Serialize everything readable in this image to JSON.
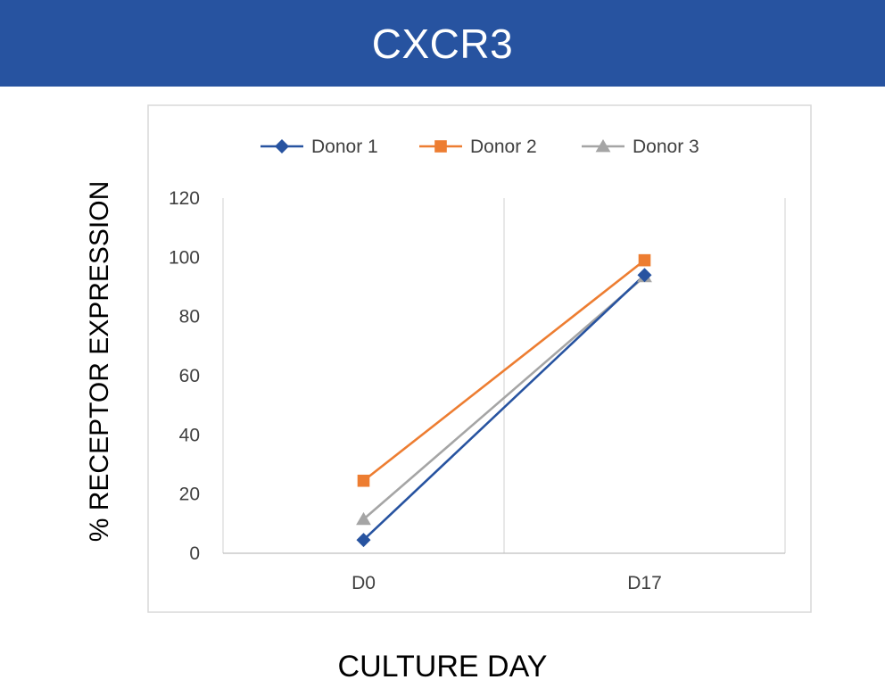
{
  "page": {
    "banner_title": "CXCR3"
  },
  "chart_data": {
    "type": "line",
    "title": "",
    "xlabel": "CULTURE DAY",
    "ylabel": "% RECEPTOR EXPRESSION",
    "categories": [
      "D0",
      "D17"
    ],
    "ylim": [
      0,
      120
    ],
    "yticks": [
      0,
      20,
      40,
      60,
      80,
      100,
      120
    ],
    "grid": "vertical category gridlines",
    "legend_position": "top",
    "series": [
      {
        "name": "Donor 1",
        "values": [
          4.5,
          94
        ],
        "color": "#2753a0",
        "marker": "diamond"
      },
      {
        "name": "Donor 2",
        "values": [
          24.5,
          99
        ],
        "color": "#ed7d31",
        "marker": "square"
      },
      {
        "name": "Donor 3",
        "values": [
          11.5,
          93.5
        ],
        "color": "#a5a5a5",
        "marker": "triangle"
      }
    ]
  }
}
